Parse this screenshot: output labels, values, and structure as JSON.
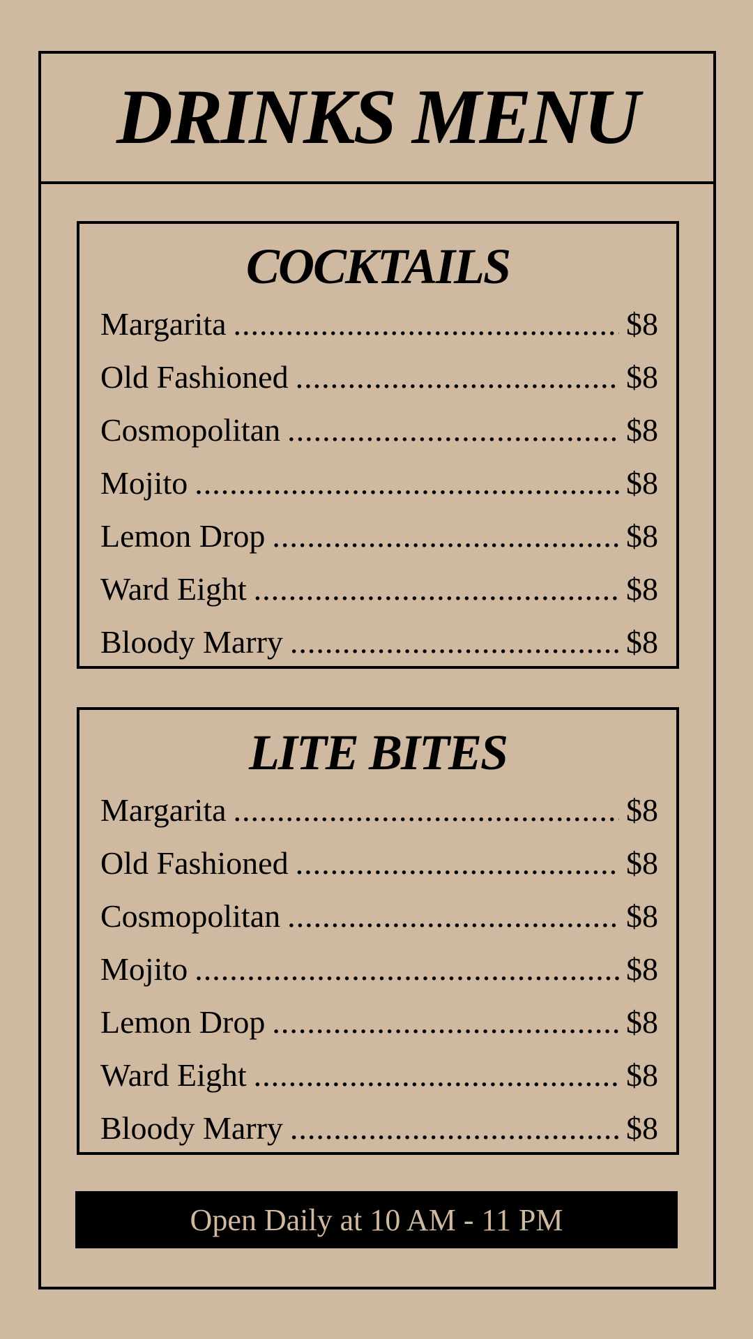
{
  "title": "DRINKS MENU",
  "sections": [
    {
      "title": "COCKTAILS",
      "items": [
        {
          "name": "Margarita",
          "price": "$8"
        },
        {
          "name": "Old Fashioned",
          "price": "$8"
        },
        {
          "name": "Cosmopolitan",
          "price": "$8"
        },
        {
          "name": "Mojito",
          "price": "$8"
        },
        {
          "name": "Lemon Drop",
          "price": "$8"
        },
        {
          "name": "Ward Eight",
          "price": "$8"
        },
        {
          "name": "Bloody Marry",
          "price": "$8"
        }
      ]
    },
    {
      "title": "LITE BITES",
      "items": [
        {
          "name": "Margarita",
          "price": "$8"
        },
        {
          "name": "Old Fashioned",
          "price": "$8"
        },
        {
          "name": "Cosmopolitan",
          "price": "$8"
        },
        {
          "name": "Mojito",
          "price": "$8"
        },
        {
          "name": "Lemon Drop",
          "price": "$8"
        },
        {
          "name": "Ward Eight",
          "price": "$8"
        },
        {
          "name": "Bloody Marry",
          "price": "$8"
        }
      ]
    }
  ],
  "footer": "Open Daily at 10 AM - 11 PM",
  "colors": {
    "background": "#cfb9a0",
    "ink": "#000000"
  }
}
